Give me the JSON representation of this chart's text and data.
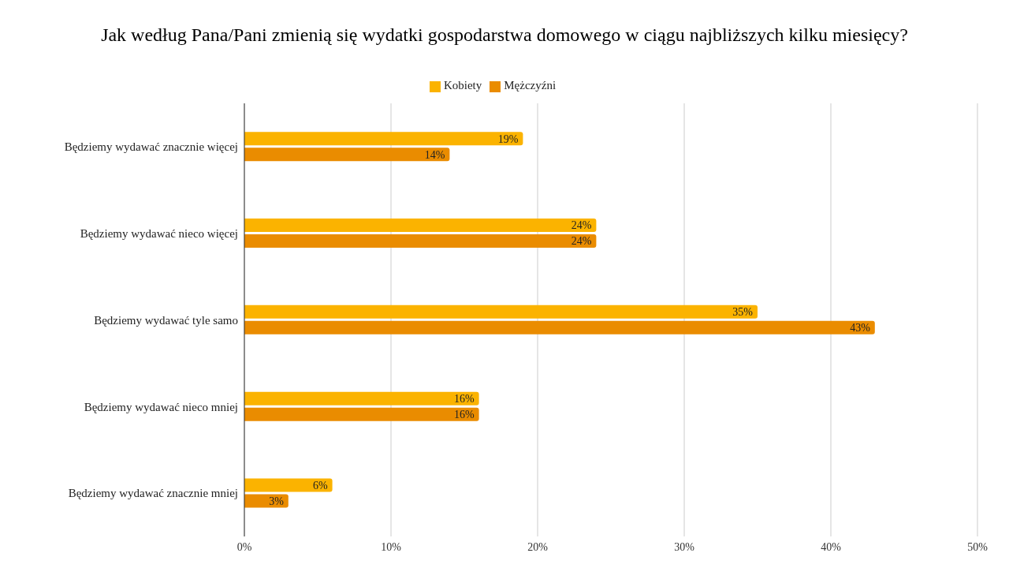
{
  "chart_data": {
    "type": "bar",
    "orientation": "horizontal",
    "title": "Jak według Pana/Pani zmienią się wydatki gospodarstwa domowego w ciągu najbliższych kilku miesięcy?",
    "categories": [
      "Będziemy wydawać znacznie więcej",
      "Będziemy wydawać nieco więcej",
      "Będziemy wydawać tyle samo",
      "Będziemy wydawać nieco mniej",
      "Będziemy wydawać znacznie mniej"
    ],
    "series": [
      {
        "name": "Kobiety",
        "color": "#fbb300",
        "values": [
          19,
          24,
          35,
          16,
          6
        ],
        "value_labels": [
          "19%",
          "24%",
          "35%",
          "16%",
          "6%"
        ]
      },
      {
        "name": "Mężczyźni",
        "color": "#ea8c00",
        "values": [
          14,
          24,
          43,
          16,
          3
        ],
        "value_labels": [
          "14%",
          "24%",
          "43%",
          "16%",
          "3%"
        ]
      }
    ],
    "xlim": [
      0,
      50
    ],
    "xticks": [
      {
        "value": 0,
        "label": "0%"
      },
      {
        "value": 10,
        "label": "10%"
      },
      {
        "value": 20,
        "label": "20%"
      },
      {
        "value": 30,
        "label": "30%"
      },
      {
        "value": 40,
        "label": "40%"
      },
      {
        "value": 50,
        "label": "50%"
      }
    ],
    "grid": "x",
    "legend": "top"
  }
}
